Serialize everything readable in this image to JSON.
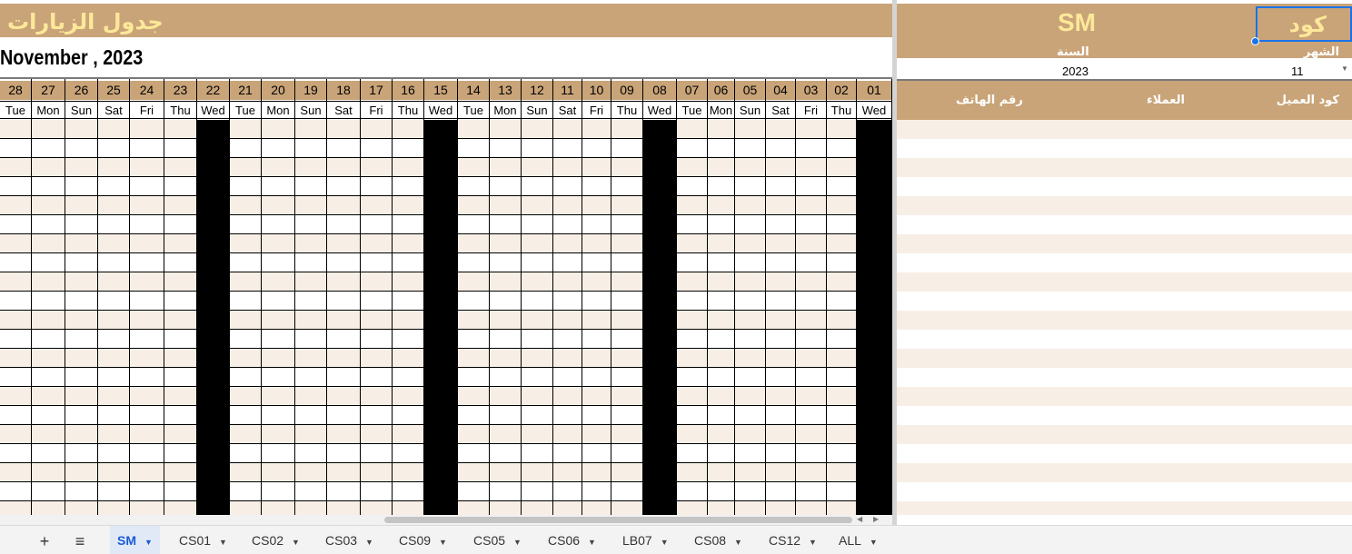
{
  "sheet": {
    "title": "جدول الزيارات",
    "month_label": "November , 2023"
  },
  "calendar": {
    "days": [
      {
        "num": "28",
        "name": "Tue"
      },
      {
        "num": "27",
        "name": "Mon"
      },
      {
        "num": "26",
        "name": "Sun"
      },
      {
        "num": "25",
        "name": "Sat"
      },
      {
        "num": "24",
        "name": "Fri"
      },
      {
        "num": "23",
        "name": "Thu"
      },
      {
        "num": "22",
        "name": "Wed"
      },
      {
        "num": "21",
        "name": "Tue"
      },
      {
        "num": "20",
        "name": "Mon"
      },
      {
        "num": "19",
        "name": "Sun"
      },
      {
        "num": "18",
        "name": "Sat"
      },
      {
        "num": "17",
        "name": "Fri"
      },
      {
        "num": "16",
        "name": "Thu"
      },
      {
        "num": "15",
        "name": "Wed"
      },
      {
        "num": "14",
        "name": "Tue"
      },
      {
        "num": "13",
        "name": "Mon"
      },
      {
        "num": "12",
        "name": "Sun"
      },
      {
        "num": "11",
        "name": "Sat"
      },
      {
        "num": "10",
        "name": "Fri"
      },
      {
        "num": "09",
        "name": "Thu"
      },
      {
        "num": "08",
        "name": "Wed"
      },
      {
        "num": "07",
        "name": "Tue"
      },
      {
        "num": "06",
        "name": "Mon"
      },
      {
        "num": "05",
        "name": "Sun"
      },
      {
        "num": "04",
        "name": "Sat"
      },
      {
        "num": "03",
        "name": "Fri"
      },
      {
        "num": "02",
        "name": "Thu"
      },
      {
        "num": "01",
        "name": "Wed"
      }
    ],
    "blocked_day_name": "Wed"
  },
  "panel": {
    "code_label": "كود",
    "code_value": "SM",
    "month_word": "الشهر",
    "year_label": "السنة",
    "month_value": "11",
    "year_value": "2023",
    "headers": {
      "customer_code": "كود العميل",
      "customers": "العملاء",
      "phone": "رقم الهاتف"
    }
  },
  "tabs": {
    "add_icon": "+",
    "list_icon": "≡",
    "items": [
      {
        "label": "SM",
        "active": true
      },
      {
        "label": "CS01",
        "active": false
      },
      {
        "label": "CS02",
        "active": false
      },
      {
        "label": "CS03",
        "active": false
      },
      {
        "label": "CS09",
        "active": false
      },
      {
        "label": "CS05",
        "active": false
      },
      {
        "label": "CS06",
        "active": false
      },
      {
        "label": "LB07",
        "active": false
      },
      {
        "label": "CS08",
        "active": false
      },
      {
        "label": "CS12",
        "active": false
      },
      {
        "label": "ALL",
        "active": false
      }
    ]
  },
  "colors": {
    "band": "#c9a478",
    "title_text": "#fde89a",
    "row_shade": "#f7efe6",
    "blocked": "#000000",
    "selection": "#1a73e8"
  }
}
